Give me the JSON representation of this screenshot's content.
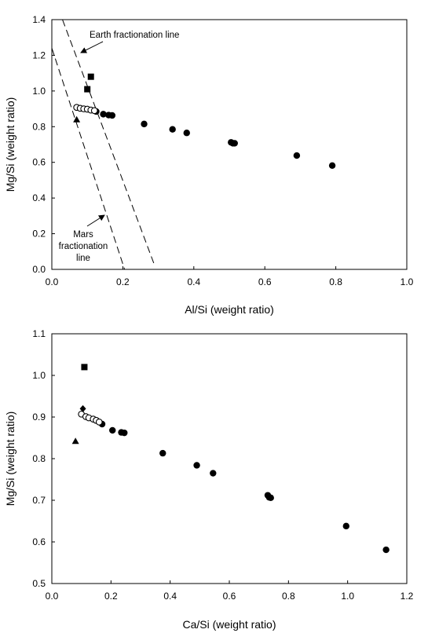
{
  "chart_data": [
    {
      "type": "scatter",
      "xlabel": "Al/Si (weight ratio)",
      "ylabel": "Mg/Si (weight ratio)",
      "xlim": [
        0,
        1.0
      ],
      "ylim": [
        0,
        1.4
      ],
      "xticks": [
        "0.0",
        "0.2",
        "0.4",
        "0.6",
        "0.8",
        "1.0"
      ],
      "yticks": [
        "0.0",
        "0.2",
        "0.4",
        "0.6",
        "0.8",
        "1.0",
        "1.2",
        "1.4"
      ],
      "grid": false,
      "series": [
        {
          "marker": "circle-filled",
          "color": "#000000",
          "points": [
            [
              0.125,
              0.885
            ],
            [
              0.145,
              0.87
            ],
            [
              0.16,
              0.865
            ],
            [
              0.17,
              0.863
            ],
            [
              0.26,
              0.815
            ],
            [
              0.34,
              0.785
            ],
            [
              0.38,
              0.765
            ],
            [
              0.505,
              0.712
            ],
            [
              0.51,
              0.707
            ],
            [
              0.515,
              0.707
            ],
            [
              0.69,
              0.638
            ],
            [
              0.79,
              0.582
            ]
          ]
        },
        {
          "marker": "circle-open",
          "color": "#000000",
          "points": [
            [
              0.07,
              0.908
            ],
            [
              0.08,
              0.903
            ],
            [
              0.09,
              0.9
            ],
            [
              0.1,
              0.898
            ],
            [
              0.11,
              0.893
            ],
            [
              0.12,
              0.89
            ]
          ]
        },
        {
          "marker": "square",
          "color": "#000000",
          "points": [
            [
              0.11,
              1.08
            ],
            [
              0.1,
              1.01
            ]
          ]
        },
        {
          "marker": "triangle",
          "color": "#000000",
          "points": [
            [
              0.07,
              0.84
            ]
          ]
        }
      ],
      "lines": [
        {
          "label": "Earth fractionation line",
          "style": "dashed",
          "from": [
            0.03,
            1.4
          ],
          "to": [
            0.29,
            0.02
          ]
        },
        {
          "label": "Mars fractionation line",
          "style": "dashed",
          "from": [
            0.0,
            1.24
          ],
          "to": [
            0.205,
            0.0
          ]
        }
      ],
      "annotations": [
        {
          "text": "Earth fractionation line"
        },
        {
          "text": "Mars"
        },
        {
          "text": "fractionation"
        },
        {
          "text": "line"
        }
      ]
    },
    {
      "type": "scatter",
      "xlabel": "Ca/Si (weight ratio)",
      "ylabel": "Mg/Si (weight ratio)",
      "xlim": [
        0,
        1.2
      ],
      "ylim": [
        0.5,
        1.1
      ],
      "xticks": [
        "0.0",
        "0.2",
        "0.4",
        "0.6",
        "0.8",
        "1.0",
        "1.2"
      ],
      "yticks": [
        "0.5",
        "0.6",
        "0.7",
        "0.8",
        "0.9",
        "1.0",
        "1.1"
      ],
      "grid": false,
      "series": [
        {
          "marker": "circle-filled",
          "color": "#000000",
          "points": [
            [
              0.17,
              0.883
            ],
            [
              0.205,
              0.868
            ],
            [
              0.235,
              0.863
            ],
            [
              0.245,
              0.862
            ],
            [
              0.375,
              0.813
            ],
            [
              0.49,
              0.784
            ],
            [
              0.545,
              0.765
            ],
            [
              0.73,
              0.712
            ],
            [
              0.735,
              0.707
            ],
            [
              0.74,
              0.706
            ],
            [
              0.995,
              0.638
            ],
            [
              1.13,
              0.581
            ]
          ]
        },
        {
          "marker": "circle-open",
          "color": "#000000",
          "points": [
            [
              0.1,
              0.907
            ],
            [
              0.115,
              0.901
            ],
            [
              0.125,
              0.898
            ],
            [
              0.14,
              0.895
            ],
            [
              0.15,
              0.892
            ],
            [
              0.16,
              0.888
            ]
          ]
        },
        {
          "marker": "square",
          "color": "#000000",
          "points": [
            [
              0.11,
              1.02
            ]
          ]
        },
        {
          "marker": "diamond",
          "color": "#000000",
          "points": [
            [
              0.105,
              0.92
            ]
          ]
        },
        {
          "marker": "triangle",
          "color": "#000000",
          "points": [
            [
              0.08,
              0.842
            ]
          ]
        }
      ]
    }
  ]
}
